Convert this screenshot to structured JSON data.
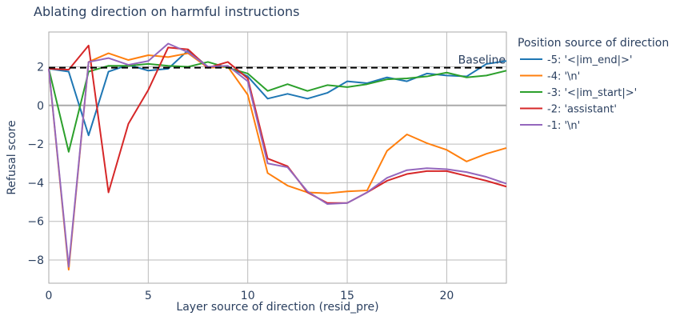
{
  "chart_data": {
    "type": "line",
    "title": "Ablating direction on harmful instructions",
    "xlabel": "Layer source of direction (resid_pre)",
    "ylabel": "Refusal score",
    "xlim": [
      0,
      23
    ],
    "ylim": [
      -9.2,
      3.8
    ],
    "x_ticks": [
      0,
      5,
      10,
      15,
      20
    ],
    "y_ticks": [
      -8,
      -6,
      -4,
      -2,
      0,
      2
    ],
    "grid": true,
    "legend_title": "Position source of direction",
    "legend_position": "right",
    "baseline": {
      "label": "Baseline",
      "value": 1.95,
      "color": "#000000",
      "style": "dashed"
    },
    "x": [
      0,
      1,
      2,
      3,
      4,
      5,
      6,
      7,
      8,
      9,
      10,
      11,
      12,
      13,
      14,
      15,
      16,
      17,
      18,
      19,
      20,
      21,
      22,
      23
    ],
    "series": [
      {
        "name": "-5: '<|im_end|>'",
        "color": "#1f77b4",
        "values": [
          1.9,
          1.75,
          -1.55,
          1.75,
          2.1,
          1.8,
          1.9,
          2.85,
          2.0,
          2.0,
          1.5,
          0.35,
          0.6,
          0.35,
          0.65,
          1.25,
          1.15,
          1.45,
          1.25,
          1.65,
          1.55,
          1.5,
          2.15,
          2.3
        ]
      },
      {
        "name": "-4: '\\n'",
        "color": "#ff7f0e",
        "values": [
          1.9,
          -8.5,
          2.25,
          2.7,
          2.35,
          2.6,
          2.5,
          2.7,
          1.95,
          2.0,
          0.55,
          -3.5,
          -4.15,
          -4.5,
          -4.55,
          -4.45,
          -4.4,
          -2.35,
          -1.5,
          -1.95,
          -2.3,
          -2.9,
          -2.5,
          -2.2
        ]
      },
      {
        "name": "-3: '<|im_start|>'",
        "color": "#2ca02c",
        "values": [
          1.9,
          -2.4,
          1.75,
          2.05,
          2.05,
          2.15,
          2.05,
          2.0,
          2.25,
          1.95,
          1.65,
          0.75,
          1.1,
          0.75,
          1.05,
          0.95,
          1.1,
          1.35,
          1.4,
          1.5,
          1.7,
          1.45,
          1.55,
          1.8
        ]
      },
      {
        "name": "-2: 'assistant'",
        "color": "#d62728",
        "values": [
          1.9,
          1.85,
          3.1,
          -4.5,
          -0.95,
          0.8,
          3.0,
          2.9,
          1.95,
          2.25,
          1.4,
          -2.75,
          -3.15,
          -4.5,
          -5.05,
          -5.05,
          -4.5,
          -3.9,
          -3.55,
          -3.4,
          -3.4,
          -3.65,
          -3.9,
          -4.2
        ]
      },
      {
        "name": "-1: '\\n'",
        "color": "#9467bd",
        "values": [
          1.9,
          -8.35,
          2.25,
          2.45,
          2.1,
          2.3,
          3.2,
          2.75,
          2.0,
          2.05,
          1.25,
          -3.0,
          -3.2,
          -4.45,
          -5.1,
          -5.05,
          -4.5,
          -3.75,
          -3.35,
          -3.25,
          -3.3,
          -3.45,
          -3.7,
          -4.05
        ]
      }
    ]
  }
}
